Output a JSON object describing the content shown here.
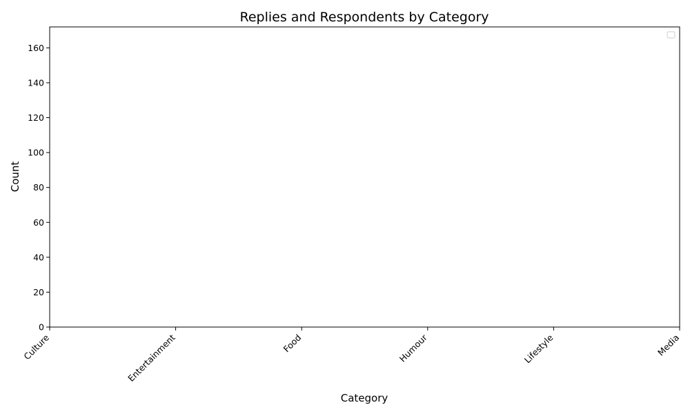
{
  "chart_data": {
    "type": "bar",
    "title": "Replies and Respondents by Category",
    "xlabel": "Category",
    "ylabel": "Count",
    "categories": [
      "Culture",
      "Entertainment",
      "Food",
      "Humour",
      "Lifestyle",
      "Media"
    ],
    "y_ticks": [
      "0",
      "20",
      "40",
      "60",
      "80",
      "100",
      "120",
      "140",
      "160"
    ],
    "ylim": [
      0,
      172
    ],
    "series": [],
    "legend": {
      "placement": "top-right",
      "entries": []
    },
    "grid": false,
    "colors": {
      "axis": "#000000",
      "legend_border": "#cccccc"
    }
  }
}
